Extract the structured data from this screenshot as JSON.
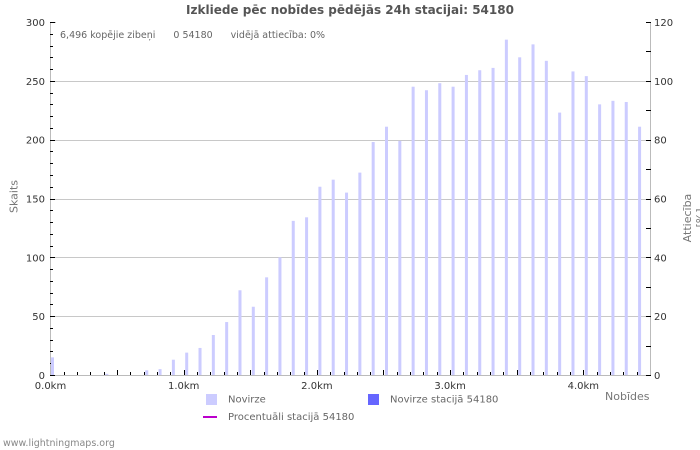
{
  "title": "Izkliede pēc nobīdes pēdējās 24h stacijai: 54180",
  "stats": {
    "total": "6,496 kopējie zibeņi",
    "station": "0 54180",
    "ratio": "vidējā attiecība: 0%"
  },
  "axes": {
    "y_left_label": "Skaits",
    "y_right_label": "Attiecība [%]",
    "x_label": "Nobīdes"
  },
  "legend": [
    {
      "label": "Novirze",
      "color": "#ccccff",
      "type": "box"
    },
    {
      "label": "Novirze stacijā 54180",
      "color": "#6666ff",
      "type": "box"
    },
    {
      "label": "Procentuāli stacijā 54180",
      "color": "#bb00cc",
      "type": "line"
    }
  ],
  "footer": "www.lightningmaps.org",
  "colors": {
    "bar": "#ccccff",
    "grid": "#c8c8c8",
    "axis": "#bbbbbb"
  },
  "chart_data": {
    "type": "bar",
    "title": "Izkliede pēc nobīdes pēdējās 24h stacijai: 54180",
    "xlabel": "Nobīdes",
    "ylabel": "Skaits",
    "y2label": "Attiecība [%]",
    "ylim": [
      0,
      300
    ],
    "y2lim": [
      0,
      120
    ],
    "y_ticks": [
      0,
      50,
      100,
      150,
      200,
      250,
      300
    ],
    "y2_ticks": [
      0,
      20,
      40,
      60,
      80,
      100,
      120
    ],
    "x_ticks": [
      "0.0km",
      "1.0km",
      "2.0km",
      "3.0km",
      "4.0km"
    ],
    "grid": true,
    "legend_position": "bottom",
    "categories": [
      "0.0",
      "0.1",
      "0.2",
      "0.3",
      "0.4",
      "0.5",
      "0.6",
      "0.7",
      "0.8",
      "0.9",
      "1.0",
      "1.1",
      "1.2",
      "1.3",
      "1.4",
      "1.5",
      "1.6",
      "1.7",
      "1.8",
      "1.9",
      "2.0",
      "2.1",
      "2.2",
      "2.3",
      "2.4",
      "2.5",
      "2.6",
      "2.7",
      "2.8",
      "2.9",
      "3.0",
      "3.1",
      "3.2",
      "3.3",
      "3.4",
      "3.5",
      "3.6",
      "3.7",
      "3.8",
      "3.9",
      "4.0",
      "4.1",
      "4.2",
      "4.3",
      "4.4"
    ],
    "series": [
      {
        "name": "Novirze",
        "values": [
          15,
          0,
          0,
          0,
          1,
          0,
          0,
          4,
          5,
          13,
          19,
          23,
          34,
          45,
          72,
          58,
          83,
          100,
          131,
          134,
          160,
          166,
          155,
          172,
          198,
          211,
          199,
          245,
          242,
          248,
          245,
          255,
          259,
          261,
          285,
          270,
          281,
          267,
          223,
          258,
          254,
          230,
          233,
          232,
          211
        ]
      },
      {
        "name": "Novirze stacijā 54180",
        "values": [
          0,
          0,
          0,
          0,
          0,
          0,
          0,
          0,
          0,
          0,
          0,
          0,
          0,
          0,
          0,
          0,
          0,
          0,
          0,
          0,
          0,
          0,
          0,
          0,
          0,
          0,
          0,
          0,
          0,
          0,
          0,
          0,
          0,
          0,
          0,
          0,
          0,
          0,
          0,
          0,
          0,
          0,
          0,
          0,
          0
        ]
      },
      {
        "name": "Procentuāli stacijā 54180",
        "values": [
          0,
          0,
          0,
          0,
          0,
          0,
          0,
          0,
          0,
          0,
          0,
          0,
          0,
          0,
          0,
          0,
          0,
          0,
          0,
          0,
          0,
          0,
          0,
          0,
          0,
          0,
          0,
          0,
          0,
          0,
          0,
          0,
          0,
          0,
          0,
          0,
          0,
          0,
          0,
          0,
          0,
          0,
          0,
          0,
          0
        ]
      }
    ]
  }
}
